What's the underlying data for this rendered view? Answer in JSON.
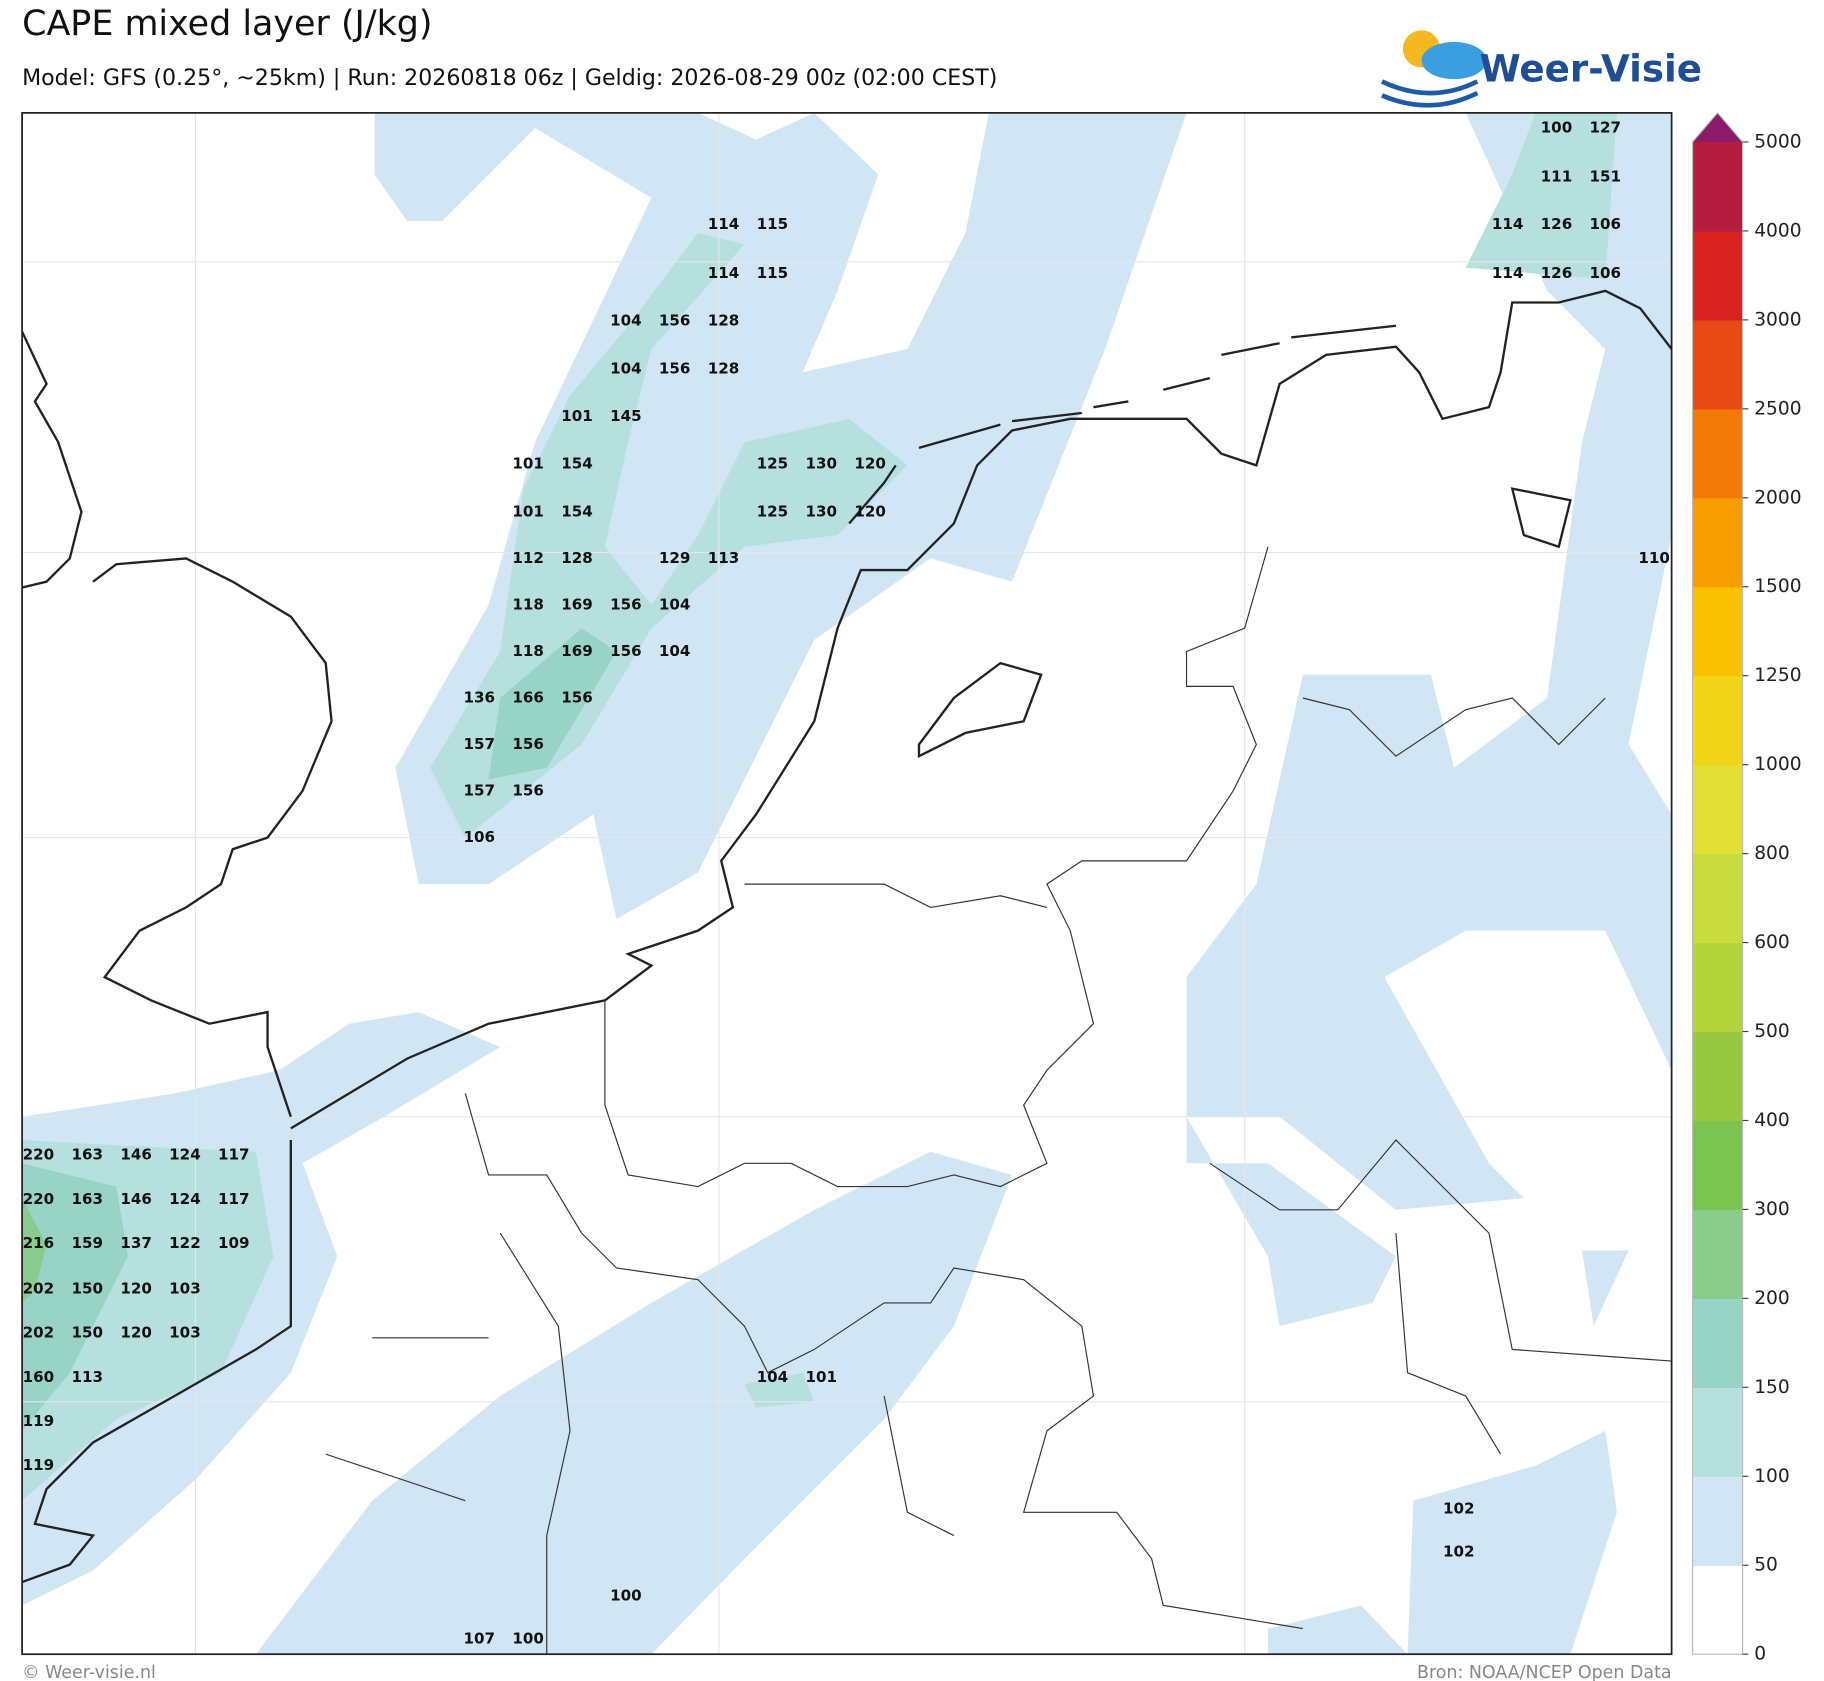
{
  "header": {
    "title": "CAPE mixed layer (J/kg)",
    "subtitle": "Model: GFS (0.25°, ~25km)  |  Run: 20260818 06z  |  Geldig: 2026-08-29 00z (02:00 CEST)",
    "logo": "Weer-Visie"
  },
  "map_labels": [
    [
      100,
      127
    ],
    [
      111,
      151
    ],
    [
      114,
      115
    ],
    [
      114,
      126,
      106
    ],
    [
      114,
      115
    ],
    [
      114,
      126,
      106
    ],
    [
      104,
      156,
      128
    ],
    [
      104,
      156,
      128
    ],
    [
      101,
      145
    ],
    [
      101,
      154
    ],
    [
      125,
      130,
      120
    ],
    [
      101,
      154
    ],
    [
      125,
      130,
      120
    ],
    [
      112,
      128
    ],
    [
      129,
      113
    ],
    [
      110
    ],
    [
      118,
      169,
      156,
      104
    ],
    [
      118,
      169,
      156,
      104
    ],
    [
      136,
      166,
      156
    ],
    [
      157,
      156
    ],
    [
      157,
      156
    ],
    [
      106
    ],
    [
      220,
      163,
      146,
      124,
      117
    ],
    [
      220,
      163,
      146,
      124,
      117
    ],
    [
      216,
      159,
      137,
      122,
      109
    ],
    [
      202,
      150,
      120,
      103
    ],
    [
      202,
      150,
      120,
      103
    ],
    [
      160,
      113
    ],
    [
      104,
      101
    ],
    [
      119
    ],
    [
      119
    ],
    [
      102
    ],
    [
      102
    ],
    [
      100
    ],
    [
      107,
      100
    ]
  ],
  "colorbar": {
    "levels": [
      0,
      50,
      100,
      150,
      200,
      300,
      400,
      500,
      600,
      800,
      1000,
      1250,
      1500,
      2000,
      2500,
      3000,
      4000,
      5000
    ],
    "colors": [
      "#ffffff",
      "#d0e6f5",
      "#b5e0de",
      "#98d4c6",
      "#8acc8c",
      "#7cc452",
      "#98c840",
      "#b4d43c",
      "#c8dc40",
      "#e2e034",
      "#f2d418",
      "#f8c200",
      "#f89e00",
      "#f27a08",
      "#e84a14",
      "#d82222",
      "#b41c40"
    ],
    "extend_color": "#8c1a6a"
  },
  "footer": {
    "left": "© Weer-visie.nl",
    "right": "Bron: NOAA/NCEP Open Data"
  }
}
